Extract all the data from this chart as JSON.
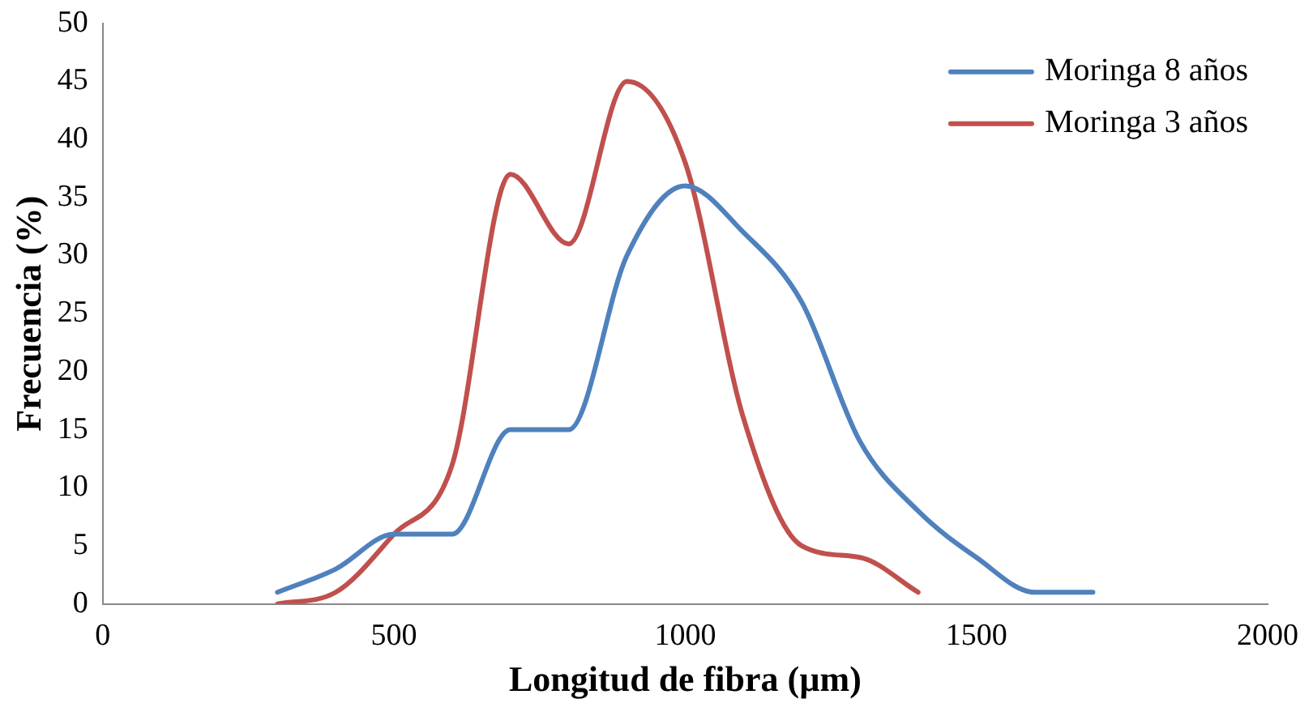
{
  "chart_data": {
    "type": "line",
    "xlabel": "Longitud de fibra (µm)",
    "ylabel": "Frecuencia (%)",
    "xlim": [
      0,
      2000
    ],
    "xticks": [
      0,
      500,
      1000,
      1500,
      2000
    ],
    "ylim": [
      0,
      50
    ],
    "yticks": [
      0,
      5,
      10,
      15,
      20,
      25,
      30,
      35,
      40,
      45,
      50
    ],
    "grid": false,
    "legend": "top right",
    "marker": "none",
    "line_style": "solid",
    "series": [
      {
        "name": "Moringa 8 años",
        "color": "#4f81bd",
        "x": [
          300,
          400,
          500,
          600,
          700,
          800,
          900,
          1000,
          1100,
          1200,
          1300,
          1400,
          1500,
          1600,
          1700
        ],
        "values": [
          1,
          3,
          6,
          6,
          15,
          15,
          30,
          36,
          32,
          26,
          14,
          8,
          4,
          1,
          1
        ]
      },
      {
        "name": "Moringa 3 años",
        "color": "#c0504d",
        "x": [
          300,
          400,
          500,
          600,
          700,
          800,
          900,
          1000,
          1100,
          1200,
          1300,
          1400
        ],
        "values": [
          0,
          1,
          6,
          12,
          37,
          31,
          45,
          38,
          16,
          5,
          4,
          1
        ]
      }
    ]
  }
}
